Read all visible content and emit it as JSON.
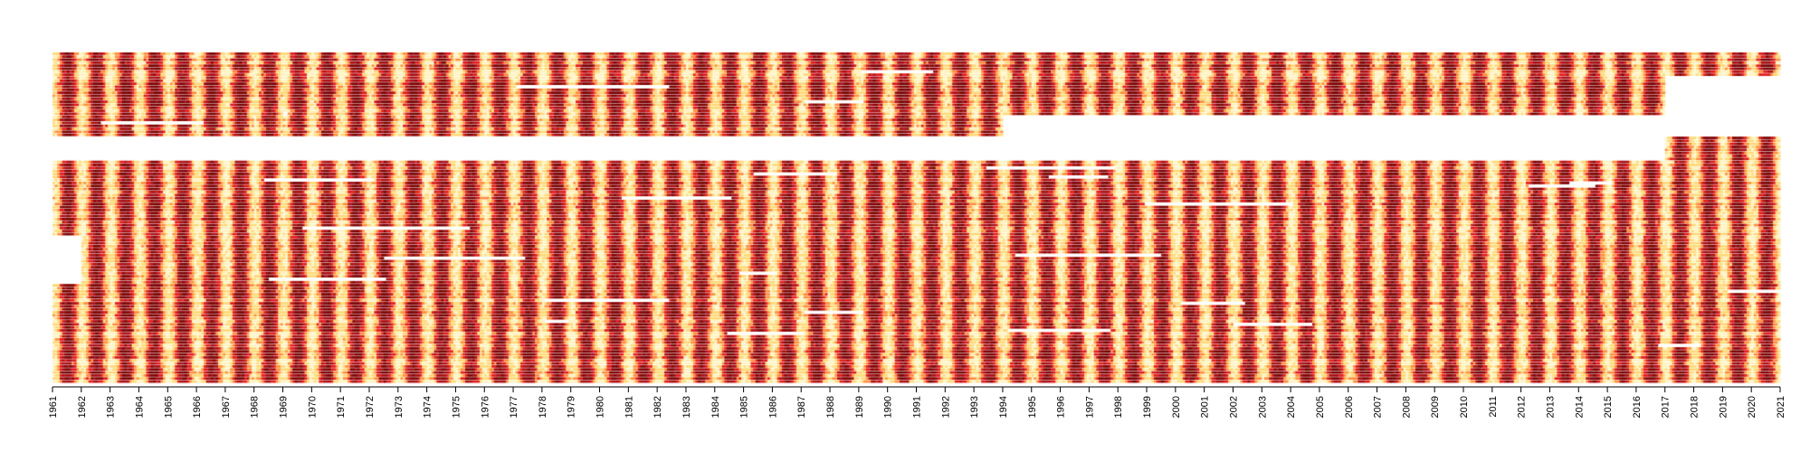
{
  "chart_data": {
    "type": "heatmap",
    "title": "",
    "xlabel": "",
    "ylabel": "",
    "x_start_year": 1961,
    "x_end_year": 2021,
    "x_tick_labels": [
      "1961",
      "1962",
      "1963",
      "1964",
      "1965",
      "1966",
      "1967",
      "1968",
      "1969",
      "1970",
      "1971",
      "1972",
      "1973",
      "1974",
      "1975",
      "1976",
      "1977",
      "1978",
      "1979",
      "1980",
      "1981",
      "1982",
      "1983",
      "1984",
      "1985",
      "1986",
      "1987",
      "1988",
      "1989",
      "1990",
      "1991",
      "1992",
      "1993",
      "1994",
      "1995",
      "1996",
      "1997",
      "1998",
      "1999",
      "2000",
      "2001",
      "2002",
      "2003",
      "2004",
      "2005",
      "2006",
      "2007",
      "2008",
      "2009",
      "2010",
      "2011",
      "2012",
      "2013",
      "2014",
      "2015",
      "2016",
      "2017",
      "2018",
      "2019",
      "2020",
      "2021"
    ],
    "n_series": 110,
    "missing_color": "#ffffff",
    "color_scale": [
      "#fff3c4",
      "#fed976",
      "#fd8d3c",
      "#e31a1c",
      "#a50f15",
      "#7a0000"
    ],
    "grid": false,
    "legend": "none",
    "series_coverage": [
      {
        "from_series": 0,
        "to_series": 7,
        "start_year": 1961,
        "end_year": 2021
      },
      {
        "from_series": 8,
        "to_series": 20,
        "start_year": 1961,
        "end_year": 2017
      },
      {
        "from_series": 21,
        "to_series": 27,
        "start_year": 1961,
        "end_year": 1994
      },
      {
        "from_series": 28,
        "to_series": 35,
        "start_year": 2017,
        "end_year": 2021
      },
      {
        "from_series": 36,
        "to_series": 60,
        "start_year": 1961,
        "end_year": 2021
      },
      {
        "from_series": 61,
        "to_series": 76,
        "start_year": 1962,
        "end_year": 2021
      },
      {
        "from_series": 77,
        "to_series": 92,
        "start_year": 1961,
        "end_year": 2021
      },
      {
        "from_series": 93,
        "to_series": 109,
        "start_year": 1961,
        "end_year": 2021
      }
    ]
  }
}
